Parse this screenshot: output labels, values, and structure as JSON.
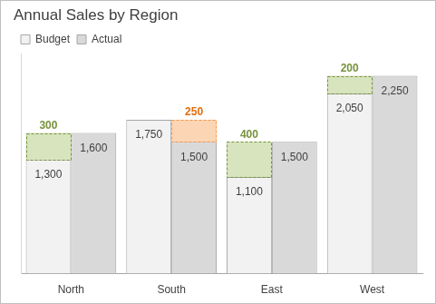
{
  "chart_data": {
    "type": "bar",
    "title": "Annual Sales by Region",
    "categories": [
      "North",
      "South",
      "East",
      "West"
    ],
    "series": [
      {
        "name": "Budget",
        "color": "#f2f2f2",
        "values": [
          1300,
          1750,
          1100,
          2050
        ],
        "value_labels": [
          "1,300",
          "1,750",
          "1,100",
          "2,050"
        ]
      },
      {
        "name": "Actual",
        "color": "#d9d9d9",
        "values": [
          1600,
          1500,
          1500,
          2250
        ],
        "value_labels": [
          "1,600",
          "1,500",
          "1,500",
          "2,250"
        ]
      }
    ],
    "variance": {
      "values": [
        300,
        250,
        400,
        200
      ],
      "colors": [
        "#d7e4bd",
        "#fcd5b5",
        "#d7e4bd",
        "#d7e4bd"
      ],
      "line_style": "dashed"
    },
    "ylim": [
      0,
      2500
    ],
    "grid": false,
    "legend": "top-left",
    "data_labels": true,
    "tick_labels": "x"
  }
}
